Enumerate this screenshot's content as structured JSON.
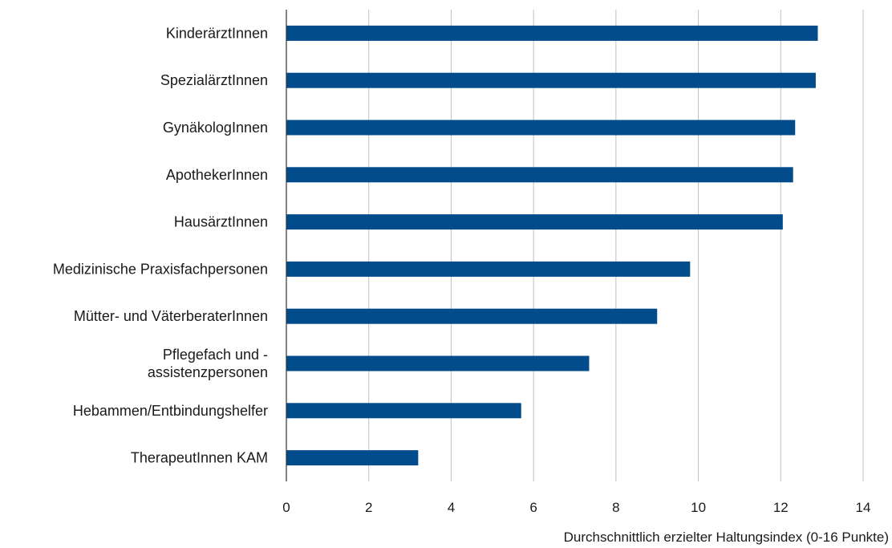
{
  "chart_data": {
    "type": "bar",
    "orientation": "horizontal",
    "categories": [
      "KinderärztInnen",
      "SpezialärztInnen",
      "GynäkologInnen",
      "ApothekerInnen",
      "HausärztInnen",
      "Medizinische Praxisfachpersonen",
      "Mütter- und VäterberaterInnen",
      "Pflegefach und - assistenzpersonen",
      "Hebammen/Entbindungshelfer",
      "TherapeutInnen KAM"
    ],
    "category_label_lines": [
      [
        "KinderärztInnen"
      ],
      [
        "SpezialärztInnen"
      ],
      [
        "GynäkologInnen"
      ],
      [
        "ApothekerInnen"
      ],
      [
        "HausärztInnen"
      ],
      [
        "Medizinische Praxisfachpersonen"
      ],
      [
        "Mütter- und VäterberaterInnen"
      ],
      [
        "Pflegefach und -",
        "assistenzpersonen"
      ],
      [
        "Hebammen/Entbindungshelfer"
      ],
      [
        "TherapeutInnen KAM"
      ]
    ],
    "values": [
      12.9,
      12.85,
      12.35,
      12.3,
      12.05,
      9.8,
      9.0,
      7.35,
      5.7,
      3.2
    ],
    "xlabel": "Durchschnittlich erzielter Haltungsindex (0-16 Punkte)",
    "xlim": [
      0,
      14
    ],
    "xticks": [
      0,
      2,
      4,
      6,
      8,
      10,
      12,
      14
    ],
    "grid": "vertical",
    "bar_color": "#034c8c"
  }
}
